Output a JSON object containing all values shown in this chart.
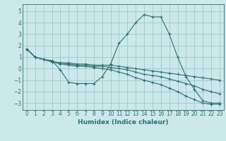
{
  "xlabel": "Humidex (Indice chaleur)",
  "ylabel": "",
  "background_color": "#cce8e8",
  "grid_color": "#99cccc",
  "line_color": "#2d7070",
  "xlim": [
    -0.5,
    23.5
  ],
  "ylim": [
    -3.6,
    5.6
  ],
  "yticks": [
    -3,
    -2,
    -1,
    0,
    1,
    2,
    3,
    4,
    5
  ],
  "xticks": [
    0,
    1,
    2,
    3,
    4,
    5,
    6,
    7,
    8,
    9,
    10,
    11,
    12,
    13,
    14,
    15,
    16,
    17,
    18,
    19,
    20,
    21,
    22,
    23
  ],
  "series": [
    {
      "x": [
        0,
        1,
        2,
        3,
        4,
        5,
        6,
        7,
        8,
        9,
        10,
        11,
        12,
        13,
        14,
        15,
        16,
        17,
        18,
        19,
        20,
        21,
        22,
        23
      ],
      "y": [
        1.7,
        1.0,
        0.8,
        0.7,
        -0.1,
        -1.2,
        -1.3,
        -1.3,
        -1.3,
        -0.7,
        0.4,
        2.2,
        3.0,
        4.0,
        4.7,
        4.5,
        4.5,
        3.0,
        1.0,
        -0.7,
        -1.8,
        -2.8,
        -3.0,
        -3.0
      ]
    },
    {
      "x": [
        0,
        1,
        2,
        3,
        4,
        5,
        6,
        7,
        8,
        9,
        10,
        11,
        12,
        13,
        14,
        15,
        16,
        17,
        18,
        19,
        20,
        21,
        22,
        23
      ],
      "y": [
        1.7,
        1.0,
        0.8,
        0.6,
        0.5,
        0.5,
        0.4,
        0.4,
        0.3,
        0.3,
        0.3,
        0.2,
        0.1,
        0.0,
        -0.1,
        -0.2,
        -0.3,
        -0.4,
        -0.5,
        -0.6,
        -0.7,
        -0.8,
        -0.9,
        -1.0
      ]
    },
    {
      "x": [
        0,
        1,
        2,
        3,
        4,
        5,
        6,
        7,
        8,
        9,
        10,
        11,
        12,
        13,
        14,
        15,
        16,
        17,
        18,
        19,
        20,
        21,
        22,
        23
      ],
      "y": [
        1.7,
        1.0,
        0.8,
        0.6,
        0.5,
        0.4,
        0.3,
        0.3,
        0.2,
        0.2,
        0.1,
        0.0,
        -0.1,
        -0.3,
        -0.5,
        -0.6,
        -0.7,
        -0.9,
        -1.1,
        -1.3,
        -1.5,
        -1.8,
        -2.0,
        -2.2
      ]
    },
    {
      "x": [
        0,
        1,
        2,
        3,
        4,
        5,
        6,
        7,
        8,
        9,
        10,
        11,
        12,
        13,
        14,
        15,
        16,
        17,
        18,
        19,
        20,
        21,
        22,
        23
      ],
      "y": [
        1.7,
        1.0,
        0.8,
        0.6,
        0.4,
        0.3,
        0.2,
        0.2,
        0.1,
        0.0,
        -0.1,
        -0.3,
        -0.5,
        -0.8,
        -1.0,
        -1.2,
        -1.4,
        -1.7,
        -2.0,
        -2.4,
        -2.7,
        -3.0,
        -3.1,
        -3.1
      ]
    }
  ]
}
